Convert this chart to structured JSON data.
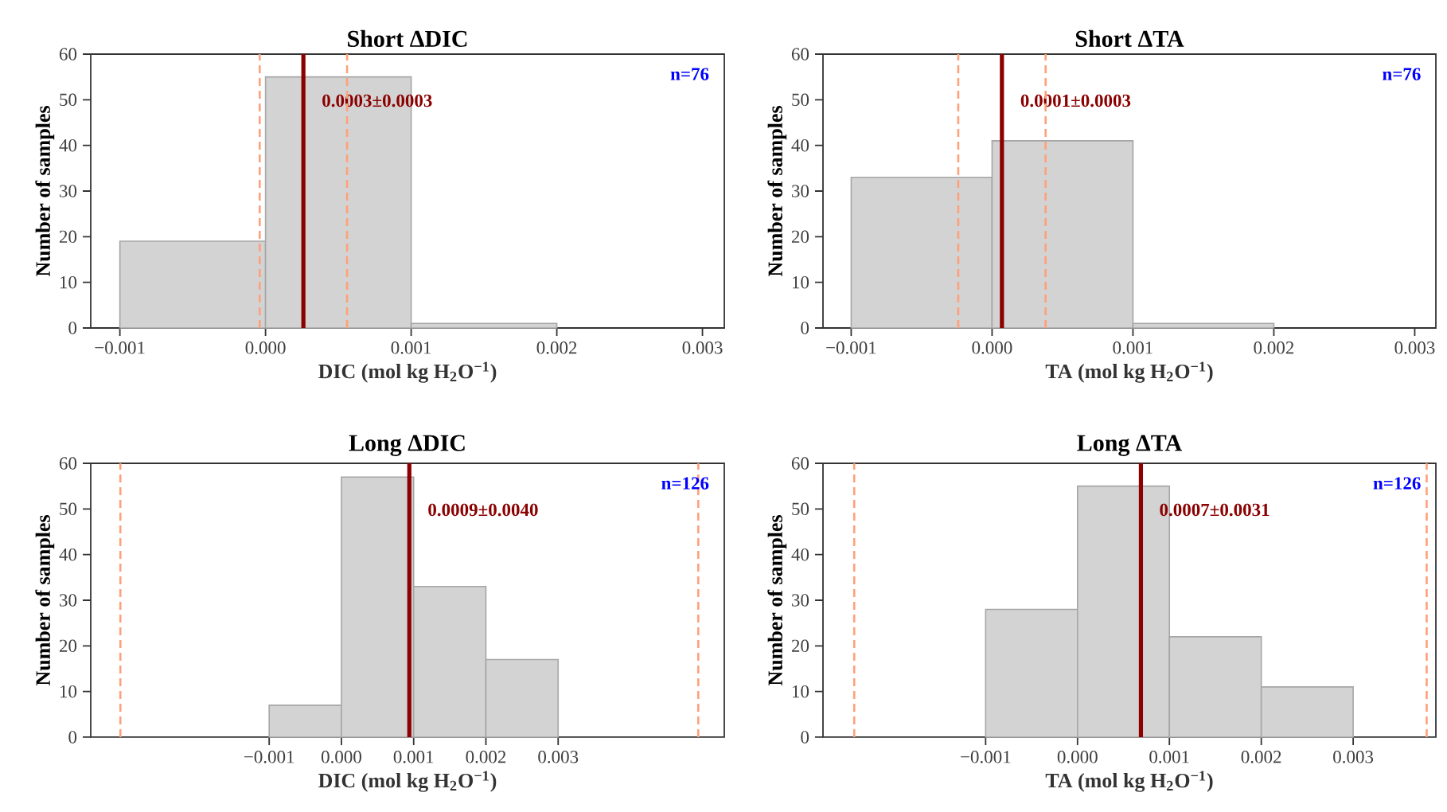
{
  "chart_data": [
    {
      "type": "histogram",
      "title": "Short ΔDIC",
      "xlabel": "DIC (mol kg H$_{2}$O$^{−1}$)",
      "ylabel": "Number of samples",
      "bins": [
        -0.001,
        0,
        0.001,
        0.002
      ],
      "values": [
        19,
        55,
        1
      ],
      "color": "#d3d3d3",
      "xlim": [
        -0.0012,
        0.00315
      ],
      "xticks": [
        {
          "value": -0.001,
          "label": "−0.001"
        },
        {
          "value": 0,
          "label": "0.000"
        },
        {
          "value": 0.001,
          "label": "0.001"
        },
        {
          "value": 0.002,
          "label": "0.002"
        },
        {
          "value": 0.003,
          "label": "0.003"
        }
      ],
      "ylim": [
        0,
        60
      ],
      "yticks": [
        0,
        10,
        20,
        30,
        40,
        50,
        60
      ],
      "ref_lines": [
        {
          "axis": "x",
          "value": 0.00026,
          "label": "0.0003±0.0003",
          "color": "#8b0000",
          "line_style": "solid"
        },
        {
          "axis": "x",
          "value": -4e-05,
          "color": "#ffa07a",
          "line_style": "dashed"
        },
        {
          "axis": "x",
          "value": 0.00056,
          "color": "#ffa07a",
          "line_style": "dashed"
        }
      ],
      "annotations": [
        "n=76"
      ]
    },
    {
      "type": "histogram",
      "title": "Short ΔTA",
      "xlabel": "TA (mol kg H$_{2}$O$^{−1}$)",
      "ylabel": "Number of samples",
      "bins": [
        -0.001,
        0,
        0.001,
        0.002
      ],
      "values": [
        33,
        41,
        1
      ],
      "color": "#d3d3d3",
      "xlim": [
        -0.0012,
        0.00315
      ],
      "xticks": [
        {
          "value": -0.001,
          "label": "−0.001"
        },
        {
          "value": 0,
          "label": "0.000"
        },
        {
          "value": 0.001,
          "label": "0.001"
        },
        {
          "value": 0.002,
          "label": "0.002"
        },
        {
          "value": 0.003,
          "label": "0.003"
        }
      ],
      "ylim": [
        0,
        60
      ],
      "yticks": [
        0,
        10,
        20,
        30,
        40,
        50,
        60
      ],
      "ref_lines": [
        {
          "axis": "x",
          "value": 7e-05,
          "label": "0.0001±0.0003",
          "color": "#8b0000",
          "line_style": "solid"
        },
        {
          "axis": "x",
          "value": -0.00024,
          "color": "#ffa07a",
          "line_style": "dashed"
        },
        {
          "axis": "x",
          "value": 0.00038,
          "color": "#ffa07a",
          "line_style": "dashed"
        }
      ],
      "annotations": [
        "n=76"
      ]
    },
    {
      "type": "histogram",
      "title": "Long ΔDIC",
      "xlabel": "DIC (mol kg H$_{2}$O$^{−1}$)",
      "ylabel": "Number of samples",
      "bins": [
        -0.001,
        0,
        0.001,
        0.002,
        0.003
      ],
      "values": [
        7,
        57,
        33,
        17
      ],
      "color": "#d3d3d3",
      "xlim": [
        -0.00347,
        0.0053
      ],
      "xticks": [
        {
          "value": -0.001,
          "label": "−0.001"
        },
        {
          "value": 0,
          "label": "0.000"
        },
        {
          "value": 0.001,
          "label": "0.001"
        },
        {
          "value": 0.002,
          "label": "0.002"
        },
        {
          "value": 0.003,
          "label": "0.003"
        }
      ],
      "ylim": [
        0,
        60
      ],
      "yticks": [
        0,
        10,
        20,
        30,
        40,
        50,
        60
      ],
      "ref_lines": [
        {
          "axis": "x",
          "value": 0.00094,
          "label": "0.0009±0.0040",
          "color": "#8b0000",
          "line_style": "solid"
        },
        {
          "axis": "x",
          "value": -0.00306,
          "color": "#ffa07a",
          "line_style": "dashed"
        },
        {
          "axis": "x",
          "value": 0.00494,
          "color": "#ffa07a",
          "line_style": "dashed"
        }
      ],
      "annotations": [
        "n=126"
      ]
    },
    {
      "type": "histogram",
      "title": "Long ΔTA",
      "xlabel": "TA (mol kg H$_{2}$O$^{−1}$)",
      "ylabel": "Number of samples",
      "bins": [
        -0.001,
        0,
        0.001,
        0.002,
        0.003
      ],
      "values": [
        28,
        55,
        22,
        11
      ],
      "color": "#d3d3d3",
      "xlim": [
        -0.00277,
        0.0039
      ],
      "xticks": [
        {
          "value": -0.001,
          "label": "−0.001"
        },
        {
          "value": 0,
          "label": "0.000"
        },
        {
          "value": 0.001,
          "label": "0.001"
        },
        {
          "value": 0.002,
          "label": "0.002"
        },
        {
          "value": 0.003,
          "label": "0.003"
        }
      ],
      "ylim": [
        0,
        60
      ],
      "yticks": [
        0,
        10,
        20,
        30,
        40,
        50,
        60
      ],
      "ref_lines": [
        {
          "axis": "x",
          "value": 0.00069,
          "label": "0.0007±0.0031",
          "color": "#8b0000",
          "line_style": "solid"
        },
        {
          "axis": "x",
          "value": -0.00243,
          "color": "#ffa07a",
          "line_style": "dashed"
        },
        {
          "axis": "x",
          "value": 0.0038,
          "color": "#ffa07a",
          "line_style": "dashed"
        }
      ],
      "annotations": [
        "n=126"
      ]
    }
  ]
}
